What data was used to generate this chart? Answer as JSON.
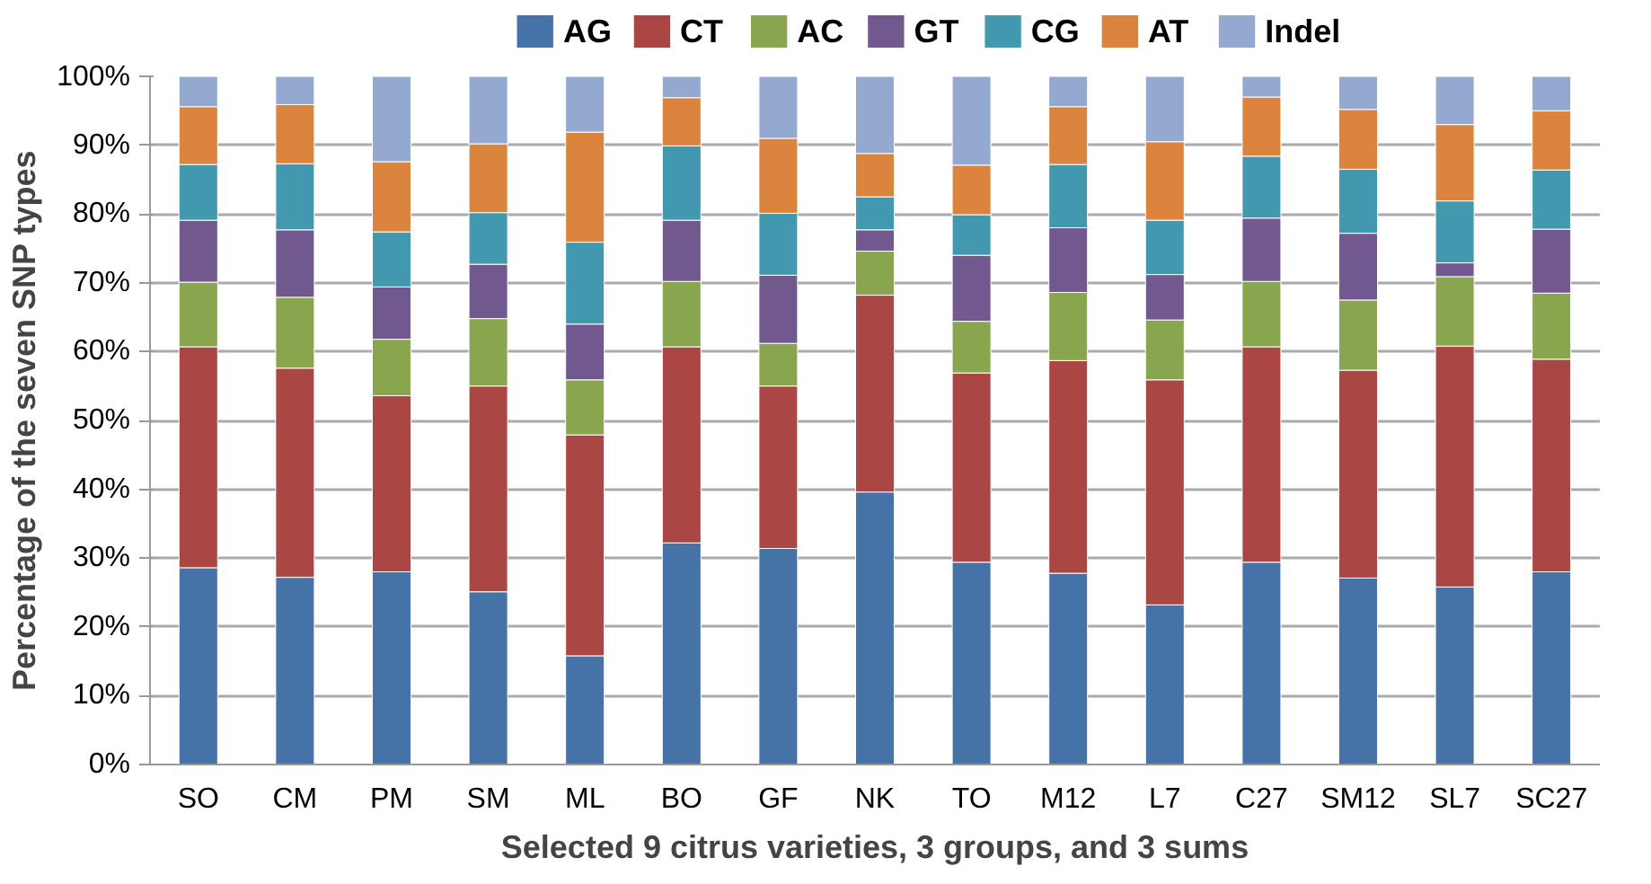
{
  "chart_data": {
    "type": "bar",
    "stacked": true,
    "xlabel": "Selected 9 citrus varieties, 3 groups, and 3 sums",
    "ylabel": "Percentage of the seven SNP types",
    "categories": [
      "SO",
      "CM",
      "PM",
      "SM",
      "ML",
      "BO",
      "GF",
      "NK",
      "TO",
      "M12",
      "L7",
      "C27",
      "SM12",
      "SL7",
      "SC27"
    ],
    "series": [
      {
        "name": "AG",
        "color": "#4572a7",
        "values": [
          28.6,
          27.2,
          28.0,
          25.1,
          15.8,
          32.2,
          31.4,
          39.6,
          29.4,
          27.8,
          23.2,
          29.4,
          27.1,
          25.8,
          28.0
        ]
      },
      {
        "name": "CT",
        "color": "#aa4643",
        "values": [
          32.1,
          30.4,
          25.6,
          29.9,
          32.1,
          28.5,
          23.6,
          28.6,
          27.5,
          30.9,
          32.7,
          31.3,
          30.2,
          35.0,
          30.9
        ]
      },
      {
        "name": "AC",
        "color": "#89a54e",
        "values": [
          9.4,
          10.3,
          8.2,
          9.8,
          8.0,
          9.5,
          6.2,
          6.4,
          7.5,
          9.9,
          8.7,
          9.5,
          10.2,
          10.1,
          9.6
        ]
      },
      {
        "name": "GT",
        "color": "#71588f",
        "values": [
          9.0,
          9.8,
          7.6,
          7.9,
          8.1,
          8.9,
          9.9,
          3.1,
          9.6,
          9.4,
          6.6,
          9.2,
          9.7,
          2.0,
          9.3
        ]
      },
      {
        "name": "CG",
        "color": "#4198af",
        "values": [
          8.1,
          9.6,
          8.0,
          7.5,
          11.9,
          10.8,
          9.0,
          4.8,
          5.9,
          9.2,
          7.9,
          9.0,
          9.3,
          9.0,
          8.6
        ]
      },
      {
        "name": "AT",
        "color": "#db843d",
        "values": [
          8.4,
          8.6,
          10.2,
          10.0,
          16.0,
          7.0,
          10.9,
          6.3,
          7.2,
          8.4,
          11.4,
          8.6,
          8.7,
          11.1,
          8.6
        ]
      },
      {
        "name": "Indel",
        "color": "#93a9cf",
        "values": [
          4.4,
          4.1,
          12.4,
          9.8,
          8.1,
          3.1,
          9.0,
          11.2,
          12.9,
          4.4,
          9.5,
          3.0,
          4.8,
          7.0,
          5.0
        ]
      }
    ],
    "ylim": [
      0,
      100
    ],
    "yticks": [
      {
        "value": 0,
        "label": "0%"
      },
      {
        "value": 10,
        "label": "10%"
      },
      {
        "value": 20,
        "label": "20%"
      },
      {
        "value": 30,
        "label": "30%"
      },
      {
        "value": 40,
        "label": "40%"
      },
      {
        "value": 50,
        "label": "50%"
      },
      {
        "value": 60,
        "label": "60%"
      },
      {
        "value": 70,
        "label": "70%"
      },
      {
        "value": 80,
        "label": "80%"
      },
      {
        "value": 90,
        "label": "90%"
      },
      {
        "value": 100,
        "label": "100%"
      }
    ],
    "grid": "y",
    "legend": "top"
  }
}
